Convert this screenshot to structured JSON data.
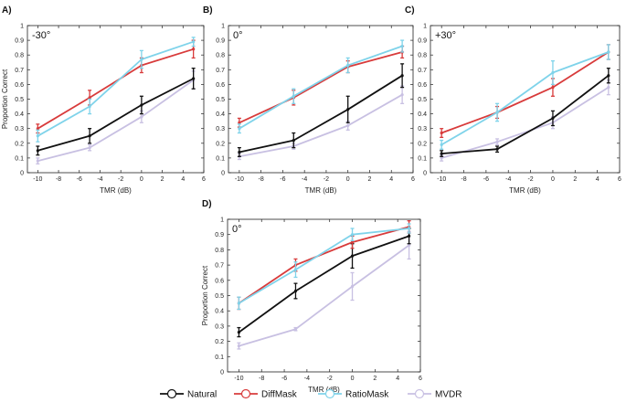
{
  "colors": {
    "Natural": "#111111",
    "DiffMask": "#d83b3b",
    "RatioMask": "#7fd3ea",
    "MVDR": "#c8c0e2"
  },
  "legend": {
    "placement": "bottom-center",
    "entries": [
      "Natural",
      "DiffMask",
      "RatioMask",
      "MVDR"
    ]
  },
  "chart_data": [
    {
      "type": "line",
      "panel": "A)",
      "angle": "-30°",
      "xlabel": "TMR (dB)",
      "ylabel": "Proportion Correct",
      "xlim": [
        -11,
        6
      ],
      "ylim": [
        0,
        1
      ],
      "xticks": [
        -10,
        -8,
        -6,
        -4,
        -2,
        0,
        2,
        4,
        6
      ],
      "yticks": [
        0,
        0.1,
        0.2,
        0.3,
        0.4,
        0.5,
        0.6,
        0.7,
        0.8,
        0.9,
        1
      ],
      "x": [
        -10,
        -5,
        0,
        5
      ],
      "series": [
        {
          "name": "Natural",
          "values": [
            0.15,
            0.25,
            0.46,
            0.64
          ],
          "err": [
            0.03,
            0.05,
            0.06,
            0.07
          ]
        },
        {
          "name": "DiffMask",
          "values": [
            0.3,
            0.51,
            0.73,
            0.84
          ],
          "err": [
            0.03,
            0.05,
            0.05,
            0.06
          ]
        },
        {
          "name": "RatioMask",
          "values": [
            0.25,
            0.45,
            0.77,
            0.89
          ],
          "err": [
            0.04,
            0.05,
            0.06,
            0.03
          ]
        },
        {
          "name": "MVDR",
          "values": [
            0.08,
            0.17,
            0.38,
            0.63
          ],
          "err": [
            0.02,
            0.02,
            0.04,
            0.06
          ]
        }
      ]
    },
    {
      "type": "line",
      "panel": "B)",
      "angle": "0°",
      "xlabel": "TMR (dB)",
      "ylabel": "",
      "xlim": [
        -11,
        6
      ],
      "ylim": [
        0,
        1
      ],
      "xticks": [
        -10,
        -8,
        -6,
        -4,
        -2,
        0,
        2,
        4,
        6
      ],
      "yticks": [
        0,
        0.1,
        0.2,
        0.3,
        0.4,
        0.5,
        0.6,
        0.7,
        0.8,
        0.9,
        1
      ],
      "x": [
        -10,
        -5,
        0,
        5
      ],
      "series": [
        {
          "name": "Natural",
          "values": [
            0.14,
            0.22,
            0.43,
            0.66
          ],
          "err": [
            0.03,
            0.05,
            0.09,
            0.08
          ]
        },
        {
          "name": "DiffMask",
          "values": [
            0.34,
            0.51,
            0.72,
            0.82
          ],
          "err": [
            0.03,
            0.05,
            0.04,
            0.04
          ]
        },
        {
          "name": "RatioMask",
          "values": [
            0.3,
            0.52,
            0.73,
            0.86
          ],
          "err": [
            0.03,
            0.05,
            0.05,
            0.04
          ]
        },
        {
          "name": "MVDR",
          "values": [
            0.11,
            0.18,
            0.32,
            0.53
          ],
          "err": [
            0.02,
            0.02,
            0.03,
            0.06
          ]
        }
      ]
    },
    {
      "type": "line",
      "panel": "C)",
      "angle": "+30°",
      "xlabel": "TMR (dB)",
      "ylabel": "",
      "xlim": [
        -11,
        6
      ],
      "ylim": [
        0,
        1
      ],
      "xticks": [
        -10,
        -8,
        -6,
        -4,
        -2,
        0,
        2,
        4,
        6
      ],
      "yticks": [
        0,
        0.1,
        0.2,
        0.3,
        0.4,
        0.5,
        0.6,
        0.7,
        0.8,
        0.9,
        1
      ],
      "x": [
        -10,
        -5,
        0,
        5
      ],
      "series": [
        {
          "name": "Natural",
          "values": [
            0.13,
            0.16,
            0.37,
            0.66
          ],
          "err": [
            0.02,
            0.02,
            0.05,
            0.05
          ]
        },
        {
          "name": "DiffMask",
          "values": [
            0.27,
            0.41,
            0.58,
            0.82
          ],
          "err": [
            0.03,
            0.04,
            0.06,
            0.05
          ]
        },
        {
          "name": "RatioMask",
          "values": [
            0.19,
            0.41,
            0.68,
            0.82
          ],
          "err": [
            0.03,
            0.06,
            0.08,
            0.05
          ]
        },
        {
          "name": "MVDR",
          "values": [
            0.1,
            0.21,
            0.34,
            0.58
          ],
          "err": [
            0.02,
            0.02,
            0.04,
            0.05
          ]
        }
      ]
    },
    {
      "type": "line",
      "panel": "D)",
      "angle": "0°",
      "xlabel": "TMR (dB)",
      "ylabel": "Proportion Correct",
      "xlim": [
        -11,
        6
      ],
      "ylim": [
        0,
        1
      ],
      "xticks": [
        -10,
        -8,
        -6,
        -4,
        -2,
        0,
        2,
        4,
        6
      ],
      "yticks": [
        0,
        0.1,
        0.2,
        0.3,
        0.4,
        0.5,
        0.6,
        0.7,
        0.8,
        0.9,
        1
      ],
      "x": [
        -10,
        -5,
        0,
        5
      ],
      "series": [
        {
          "name": "Natural",
          "values": [
            0.26,
            0.53,
            0.76,
            0.89
          ],
          "err": [
            0.03,
            0.05,
            0.08,
            0.05
          ]
        },
        {
          "name": "DiffMask",
          "values": [
            0.45,
            0.7,
            0.85,
            0.95
          ],
          "err": [
            0.04,
            0.04,
            0.04,
            0.04
          ]
        },
        {
          "name": "RatioMask",
          "values": [
            0.45,
            0.67,
            0.9,
            0.94
          ],
          "err": [
            0.04,
            0.05,
            0.04,
            0.03
          ]
        },
        {
          "name": "MVDR",
          "values": [
            0.17,
            0.28,
            0.56,
            0.83
          ],
          "err": [
            0.02,
            0.01,
            0.09,
            0.09
          ]
        }
      ]
    }
  ]
}
